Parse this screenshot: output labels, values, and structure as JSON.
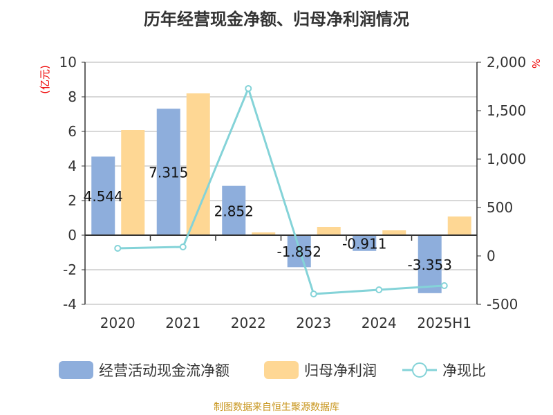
{
  "chart_data": {
    "type": "bar",
    "title": "历年经营现金净额、归母净利润情况",
    "categories": [
      "2020",
      "2021",
      "2022",
      "2023",
      "2024",
      "2025H1"
    ],
    "ylabel": "(亿元)",
    "y2label": "%",
    "ylim": [
      -4,
      10
    ],
    "yticks": [
      -4,
      -2,
      0,
      2,
      4,
      6,
      8,
      10
    ],
    "y2lim": [
      -500,
      2000
    ],
    "y2ticks": [
      -500,
      0,
      500,
      1000,
      1500,
      2000
    ],
    "y2ticklabels": [
      "-500",
      "0",
      "500",
      "1,000",
      "1,500",
      "2,000"
    ],
    "grid": true,
    "legend_position": "bottom",
    "series": [
      {
        "name": "经营活动现金流净额",
        "type": "bar",
        "axis": "left",
        "color": "#8eaedc",
        "values": [
          4.544,
          7.315,
          2.852,
          -1.852,
          -0.911,
          -3.353
        ],
        "labels": [
          "4.544",
          "7.315",
          "2.852",
          "-1.852",
          "-0.911",
          "-3.353"
        ]
      },
      {
        "name": "归母净利润",
        "type": "bar",
        "axis": "left",
        "color": "#fed794",
        "values": [
          6.08,
          8.2,
          0.16,
          0.48,
          0.28,
          1.08
        ]
      },
      {
        "name": "净现比",
        "type": "line",
        "axis": "right",
        "color": "#84d3d8",
        "values": [
          79,
          93,
          1729,
          -393,
          -350,
          -307
        ]
      }
    ]
  },
  "source": "制图数据来自恒生聚源数据库"
}
